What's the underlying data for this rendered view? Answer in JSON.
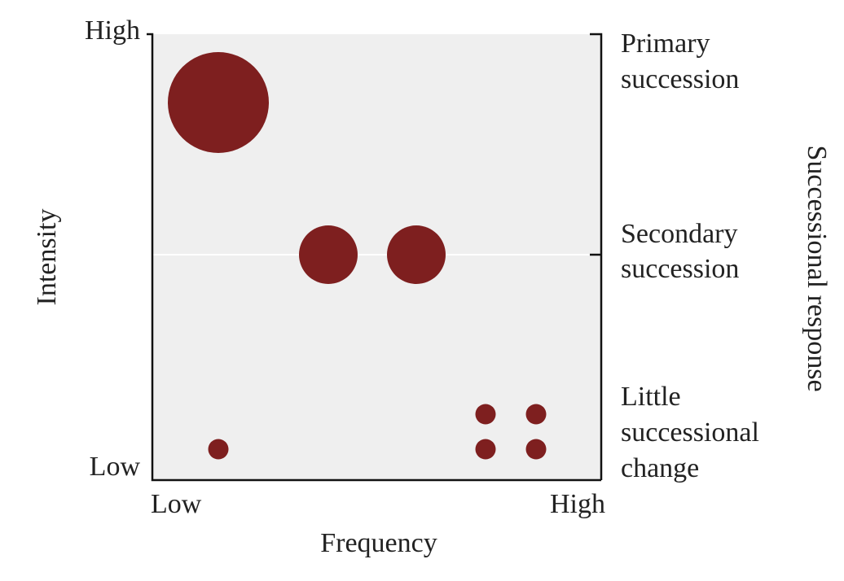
{
  "y_axis": {
    "label": "Intensity",
    "high": "High",
    "low": "Low"
  },
  "x_axis": {
    "label": "Frequency",
    "low": "Low",
    "high": "High"
  },
  "right_axis": {
    "label": "Successional response",
    "levels": [
      [
        "Primary",
        "succession"
      ],
      [
        "Secondary",
        "succession"
      ],
      [
        "Little",
        "successional",
        "change"
      ]
    ]
  }
}
